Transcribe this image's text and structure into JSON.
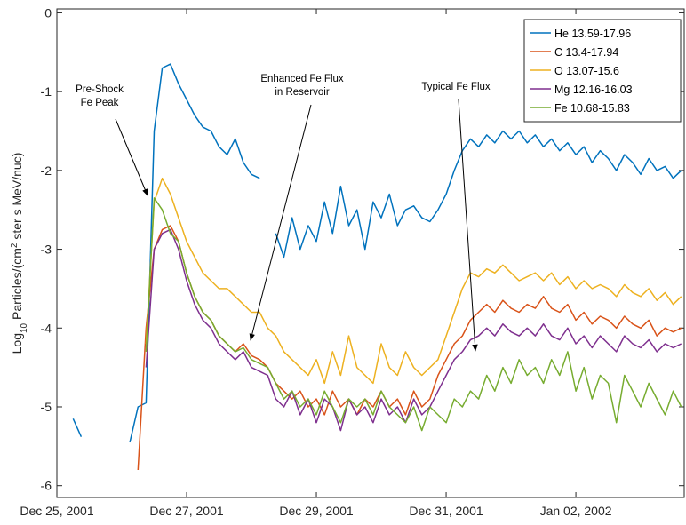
{
  "chart_data": {
    "type": "line",
    "ylabel": [
      "Log",
      "10",
      " Particles/(cm",
      "2",
      " ster s MeV/nuc)"
    ],
    "x": [
      0,
      0.125,
      0.25,
      0.375,
      0.5,
      0.625,
      0.75,
      0.875,
      1,
      1.125,
      1.25,
      1.375,
      1.5,
      1.625,
      1.75,
      1.875,
      2,
      2.125,
      2.25,
      2.375,
      2.5,
      2.625,
      2.75,
      2.875,
      3,
      3.125,
      3.25,
      3.375,
      3.5,
      3.625,
      3.75,
      3.875,
      4,
      4.125,
      4.25,
      4.375,
      4.5,
      4.625,
      4.75,
      4.875,
      5,
      5.125,
      5.25,
      5.375,
      5.5,
      5.625,
      5.75,
      5.875,
      6,
      6.125,
      6.25,
      6.375,
      6.5,
      6.625,
      6.75,
      6.875,
      7,
      7.125,
      7.25,
      7.375,
      7.5,
      7.625,
      7.75,
      7.875,
      8,
      8.125,
      8.25,
      8.375,
      8.5,
      8.625,
      8.75,
      8.875,
      9,
      9.125,
      9.25,
      9.375,
      9.5,
      9.625
    ],
    "xlim": [
      0,
      9.67
    ],
    "xticks": [
      {
        "value": 0,
        "label": "Dec 25, 2001"
      },
      {
        "value": 2,
        "label": "Dec 27, 2001"
      },
      {
        "value": 4,
        "label": "Dec 29, 2001"
      },
      {
        "value": 6,
        "label": "Dec 31, 2001"
      },
      {
        "value": 8,
        "label": "Jan 02, 2002"
      }
    ],
    "ylim": [
      -6.15,
      0.05
    ],
    "yticks": [
      -6,
      -5,
      -4,
      -3,
      -2,
      -1,
      0
    ],
    "legend": "upper right",
    "series": [
      {
        "name": "He 13.59-17.96",
        "color": "#0072bd",
        "values": [
          null,
          null,
          -5.15,
          -5.38,
          null,
          null,
          null,
          null,
          null,
          -5.45,
          -5.0,
          -4.95,
          -1.5,
          -0.7,
          -0.65,
          -0.9,
          -1.1,
          -1.3,
          -1.45,
          -1.5,
          -1.7,
          -1.8,
          -1.6,
          -1.9,
          -2.05,
          -2.1,
          null,
          -2.8,
          -3.1,
          -2.6,
          -3.0,
          -2.7,
          -2.9,
          -2.4,
          -2.8,
          -2.2,
          -2.7,
          -2.5,
          -3.0,
          -2.4,
          -2.6,
          -2.3,
          -2.7,
          -2.5,
          -2.45,
          -2.6,
          -2.65,
          -2.5,
          -2.3,
          -2.0,
          -1.75,
          -1.6,
          -1.7,
          -1.55,
          -1.65,
          -1.5,
          -1.6,
          -1.5,
          -1.65,
          -1.55,
          -1.7,
          -1.6,
          -1.75,
          -1.65,
          -1.8,
          -1.7,
          -1.9,
          -1.75,
          -1.85,
          -2.0,
          -1.8,
          -1.9,
          -2.05,
          -1.85,
          -2.0,
          -1.95,
          -2.1,
          -2.0
        ]
      },
      {
        "name": "C 13.4-17.94",
        "color": "#d95319",
        "values": [
          null,
          null,
          null,
          null,
          null,
          null,
          null,
          null,
          null,
          null,
          -5.8,
          -4.0,
          -3.0,
          -2.75,
          -2.7,
          -2.9,
          -3.3,
          -3.6,
          -3.8,
          -3.9,
          -4.1,
          -4.2,
          -4.3,
          -4.2,
          -4.35,
          -4.4,
          -4.5,
          -4.7,
          -4.8,
          -4.9,
          -4.8,
          -5.0,
          -4.9,
          -5.1,
          -4.8,
          -5.0,
          -4.9,
          -5.1,
          -4.9,
          -5.0,
          -4.8,
          -5.0,
          -4.9,
          -5.1,
          -4.8,
          -5.0,
          -4.9,
          -4.6,
          -4.4,
          -4.2,
          -4.1,
          -3.9,
          -3.8,
          -3.7,
          -3.8,
          -3.65,
          -3.75,
          -3.8,
          -3.7,
          -3.75,
          -3.6,
          -3.75,
          -3.8,
          -3.7,
          -3.9,
          -3.8,
          -3.95,
          -3.85,
          -3.9,
          -4.0,
          -3.85,
          -3.95,
          -4.0,
          -3.9,
          -4.1,
          -4.0,
          -4.05,
          -4.0
        ]
      },
      {
        "name": "O 13.07-15.6",
        "color": "#edb120",
        "values": [
          null,
          null,
          null,
          null,
          null,
          null,
          null,
          null,
          null,
          null,
          null,
          -4.2,
          -2.4,
          -2.1,
          -2.3,
          -2.6,
          -2.9,
          -3.1,
          -3.3,
          -3.4,
          -3.5,
          -3.5,
          -3.6,
          -3.7,
          -3.8,
          -3.8,
          -4.0,
          -4.1,
          -4.3,
          -4.4,
          -4.5,
          -4.6,
          -4.4,
          -4.7,
          -4.3,
          -4.6,
          -4.1,
          -4.5,
          -4.6,
          -4.7,
          -4.2,
          -4.5,
          -4.6,
          -4.3,
          -4.5,
          -4.6,
          -4.5,
          -4.4,
          -4.1,
          -3.8,
          -3.5,
          -3.3,
          -3.35,
          -3.25,
          -3.3,
          -3.2,
          -3.3,
          -3.4,
          -3.35,
          -3.3,
          -3.4,
          -3.3,
          -3.45,
          -3.35,
          -3.5,
          -3.4,
          -3.5,
          -3.45,
          -3.5,
          -3.6,
          -3.45,
          -3.55,
          -3.6,
          -3.5,
          -3.65,
          -3.55,
          -3.7,
          -3.6
        ]
      },
      {
        "name": "Mg 12.16-16.03",
        "color": "#7e2f8e",
        "values": [
          null,
          null,
          null,
          null,
          null,
          null,
          null,
          null,
          null,
          null,
          null,
          -4.5,
          -3.0,
          -2.8,
          -2.75,
          -3.0,
          -3.4,
          -3.7,
          -3.9,
          -4.0,
          -4.2,
          -4.3,
          -4.4,
          -4.3,
          -4.5,
          -4.55,
          -4.6,
          -4.9,
          -5.0,
          -4.8,
          -5.1,
          -4.9,
          -5.2,
          -4.9,
          -5.0,
          -5.3,
          -4.9,
          -5.1,
          -5.0,
          -5.2,
          -4.9,
          -5.1,
          -5.0,
          -5.2,
          -4.9,
          -5.1,
          -5.0,
          -4.8,
          -4.6,
          -4.4,
          -4.3,
          -4.15,
          -4.1,
          -4.0,
          -4.1,
          -3.95,
          -4.05,
          -4.1,
          -4.0,
          -4.1,
          -3.95,
          -4.1,
          -4.15,
          -4.0,
          -4.2,
          -4.1,
          -4.25,
          -4.1,
          -4.2,
          -4.3,
          -4.1,
          -4.2,
          -4.25,
          -4.15,
          -4.3,
          -4.2,
          -4.25,
          -4.2
        ]
      },
      {
        "name": "Fe 10.68-15.83",
        "color": "#77ac30",
        "values": [
          null,
          null,
          null,
          null,
          null,
          null,
          null,
          null,
          null,
          null,
          null,
          -4.3,
          -2.35,
          -2.5,
          -2.8,
          -2.9,
          -3.3,
          -3.6,
          -3.8,
          -3.9,
          -4.1,
          -4.2,
          -4.3,
          -4.25,
          -4.4,
          -4.45,
          -4.5,
          -4.7,
          -4.9,
          -4.8,
          -5.0,
          -4.9,
          -5.1,
          -4.8,
          -5.0,
          -5.2,
          -4.9,
          -5.0,
          -4.9,
          -5.1,
          -4.8,
          -5.0,
          -5.1,
          -5.2,
          -5.0,
          -5.3,
          -5.0,
          -5.1,
          -5.2,
          -4.9,
          -5.0,
          -4.8,
          -4.9,
          -4.6,
          -4.8,
          -4.5,
          -4.7,
          -4.4,
          -4.6,
          -4.5,
          -4.7,
          -4.4,
          -4.6,
          -4.3,
          -4.8,
          -4.5,
          -4.9,
          -4.6,
          -4.7,
          -5.2,
          -4.6,
          -4.8,
          -5.0,
          -4.7,
          -4.9,
          -5.1,
          -4.8,
          -5.0
        ]
      }
    ],
    "annotations": [
      [
        "Pre-Shock",
        "Fe Peak"
      ],
      [
        "Enhanced Fe Flux",
        "in Reservoir"
      ],
      [
        "Typical Fe Flux"
      ]
    ]
  }
}
